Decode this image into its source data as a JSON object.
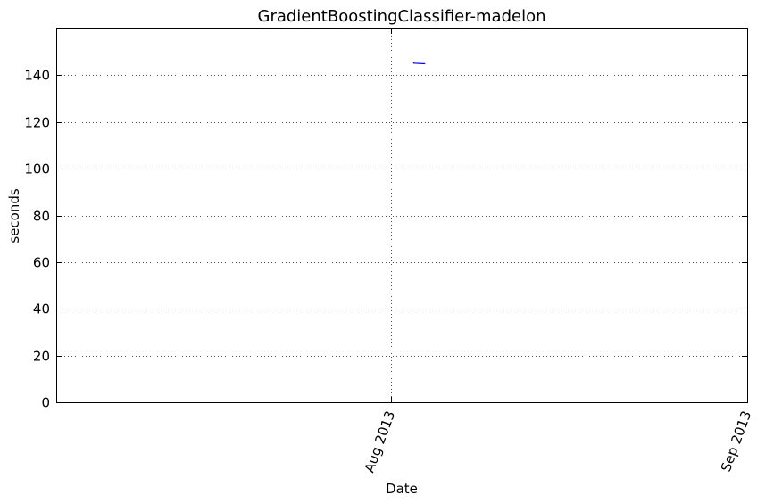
{
  "chart_data": {
    "type": "line",
    "title": "GradientBoostingClassifier-madelon",
    "xlabel": "Date",
    "ylabel": "seconds",
    "x_axis_type": "date",
    "xlim": [
      "2013-07-03",
      "2013-09-01"
    ],
    "ylim": [
      0,
      160
    ],
    "y_ticks": [
      0,
      20,
      40,
      60,
      80,
      100,
      120,
      140
    ],
    "x_ticks": [
      {
        "date": "2013-08-01",
        "label": "Aug 2013"
      },
      {
        "date": "2013-09-01",
        "label": "Sep 2013"
      }
    ],
    "grid": true,
    "series": [
      {
        "color": "#0000ff",
        "x": [
          "2013-08-03",
          "2013-08-03",
          "2013-08-04"
        ],
        "y": [
          145.6,
          145.2,
          144.9
        ]
      }
    ]
  }
}
